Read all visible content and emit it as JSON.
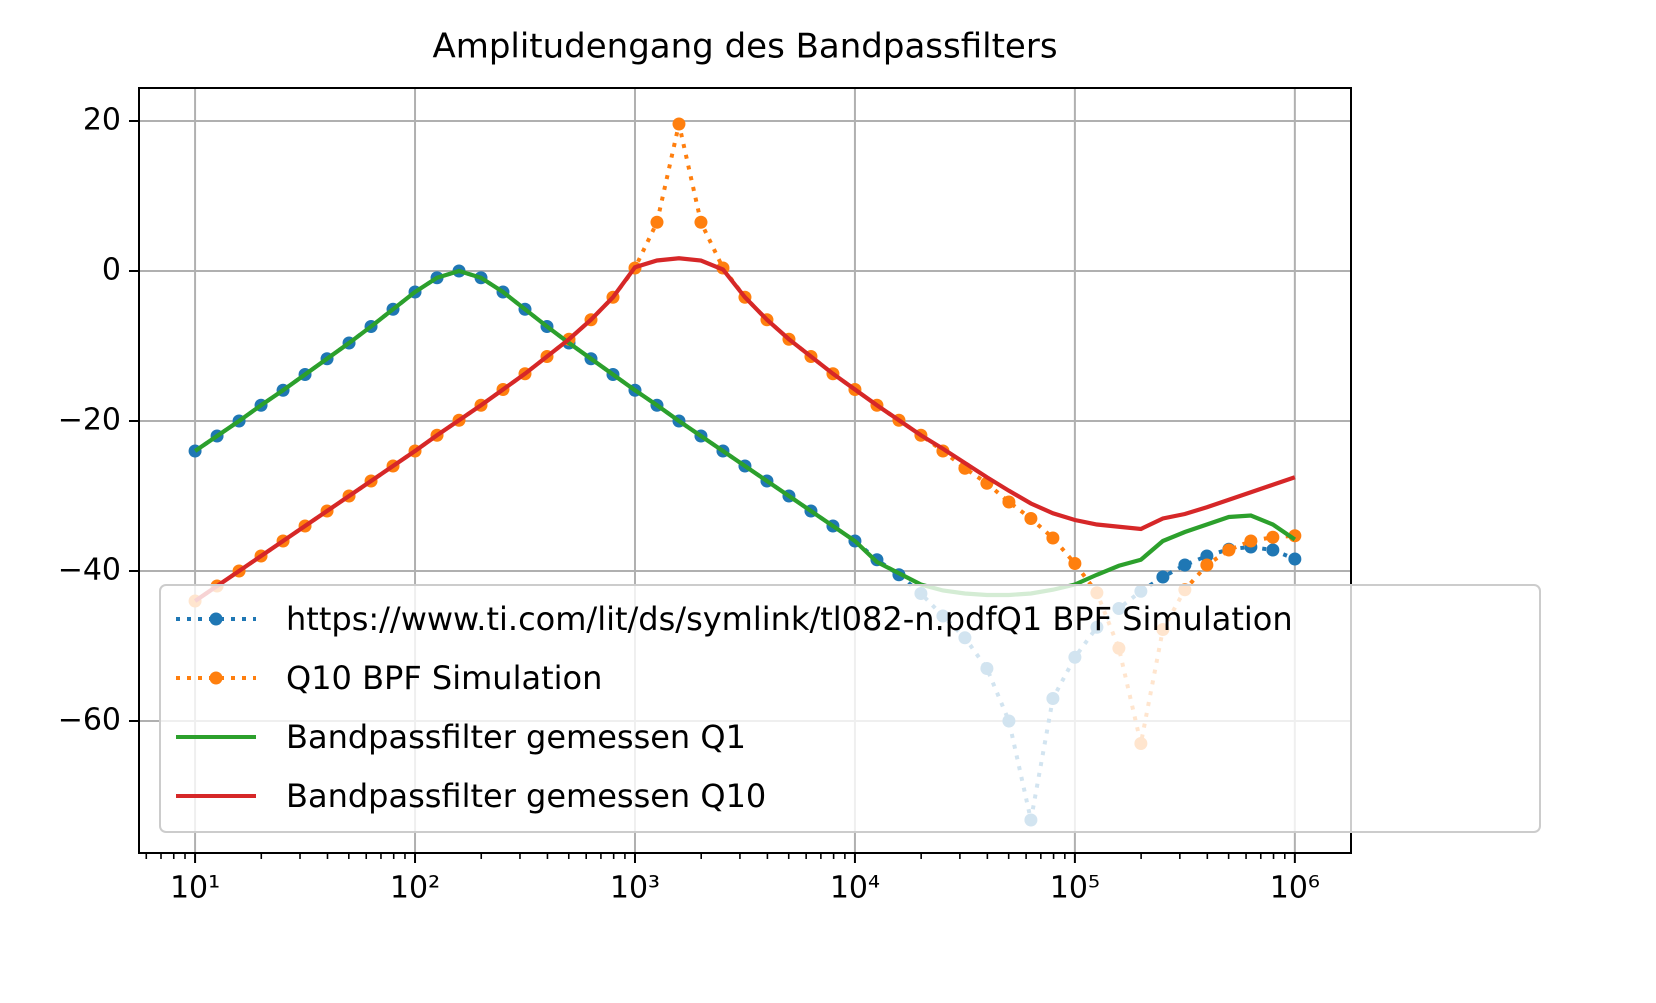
{
  "chart_data": {
    "type": "line",
    "title": "Amplitudengang des Bandpassfilters",
    "xscale": "log",
    "grid": true,
    "legend": "lower right",
    "xlim": [
      5.56,
      1800000
    ],
    "ylim": [
      -77.6,
      24.4
    ],
    "xticks": [
      {
        "value": 10,
        "label": "10¹"
      },
      {
        "value": 100,
        "label": "10²"
      },
      {
        "value": 1000,
        "label": "10³"
      },
      {
        "value": 10000,
        "label": "10⁴"
      },
      {
        "value": 100000,
        "label": "10⁵"
      },
      {
        "value": 1000000,
        "label": "10⁶"
      }
    ],
    "xminorticks": [
      6,
      7,
      8,
      9,
      20,
      30,
      40,
      50,
      60,
      70,
      80,
      90,
      200,
      300,
      400,
      500,
      600,
      700,
      800,
      900,
      2000,
      3000,
      4000,
      5000,
      6000,
      7000,
      8000,
      9000,
      20000,
      30000,
      40000,
      50000,
      60000,
      70000,
      80000,
      90000,
      200000,
      300000,
      400000,
      500000,
      600000,
      700000,
      800000,
      900000
    ],
    "yticks": [
      {
        "value": -60,
        "label": "−60"
      },
      {
        "value": -40,
        "label": "−40"
      },
      {
        "value": -20,
        "label": "−20"
      },
      0,
      20
    ],
    "x": [
      10,
      12.59,
      15.85,
      19.95,
      25.12,
      31.62,
      39.81,
      50.12,
      63.1,
      79.43,
      100,
      125.9,
      158.5,
      199.5,
      251.2,
      316.2,
      398.1,
      501.2,
      631,
      794.3,
      1000,
      1259,
      1585,
      1995,
      2512,
      3162,
      3981,
      5012,
      6310,
      7943,
      10000,
      12590,
      15850,
      19950,
      25120,
      31620,
      39810,
      50120,
      63100,
      79430,
      100000,
      125900,
      158500,
      199500,
      251200,
      316200,
      398100,
      501200,
      631000,
      794300,
      1000000
    ],
    "series": [
      {
        "name": "https://www.ti.com/lit/ds/symlink/tl082-n.pdfQ1 BPF Simulation",
        "color": "#1f77b4",
        "linestyle": "dotted",
        "marker": true,
        "values": [
          -24.0,
          -22.0,
          -20.0,
          -17.9,
          -15.9,
          -13.8,
          -11.7,
          -9.6,
          -7.4,
          -5.1,
          -2.8,
          -0.9,
          0,
          -0.9,
          -2.8,
          -5.1,
          -7.4,
          -9.6,
          -11.7,
          -13.8,
          -15.9,
          -17.9,
          -20.0,
          -22.0,
          -24.0,
          -26.0,
          -28.0,
          -30.0,
          -32.0,
          -34.0,
          -36.0,
          -38.5,
          -40.5,
          -43.0,
          -46.0,
          -48.9,
          -53.0,
          -60.0,
          -73.2,
          -57.0,
          -51.5,
          -47.5,
          -45.0,
          -42.7,
          -40.8,
          -39.2,
          -38.0,
          -37.1,
          -36.8,
          -37.2,
          -38.4
        ]
      },
      {
        "name": "Q10 BPF Simulation",
        "color": "#ff7f0e",
        "linestyle": "dotted",
        "marker": true,
        "values": [
          -44.0,
          -42.0,
          -40.0,
          -38.0,
          -36.0,
          -34.0,
          -32.0,
          -30.0,
          -28.0,
          -26.0,
          -24.0,
          -21.9,
          -19.9,
          -17.9,
          -15.8,
          -13.7,
          -11.4,
          -9.1,
          -6.5,
          -3.5,
          0.4,
          6.5,
          19.6,
          6.5,
          0.4,
          -3.5,
          -6.5,
          -9.1,
          -11.4,
          -13.7,
          -15.8,
          -17.9,
          -19.9,
          -21.9,
          -24.0,
          -26.3,
          -28.3,
          -30.8,
          -33.0,
          -35.6,
          -39.0,
          -42.9,
          -50.3,
          -63.0,
          -47.8,
          -42.5,
          -39.2,
          -37.2,
          -36.0,
          -35.5,
          -35.3
        ]
      },
      {
        "name": "Bandpassfilter gemessen Q1",
        "color": "#2ca02c",
        "linestyle": "solid",
        "marker": false,
        "values": [
          -24.0,
          -22.0,
          -20.0,
          -17.9,
          -15.9,
          -13.8,
          -11.7,
          -9.6,
          -7.4,
          -5.1,
          -2.8,
          -0.9,
          0,
          -0.9,
          -2.8,
          -5.1,
          -7.4,
          -9.6,
          -11.7,
          -13.8,
          -15.9,
          -17.9,
          -20.0,
          -22.0,
          -24.0,
          -26.0,
          -28.0,
          -30.0,
          -32.0,
          -34.0,
          -36.0,
          -38.8,
          -40.3,
          -41.8,
          -42.6,
          -43.0,
          -43.2,
          -43.2,
          -43.0,
          -42.5,
          -41.8,
          -40.5,
          -39.3,
          -38.5,
          -36.0,
          -34.8,
          -33.8,
          -32.8,
          -32.6,
          -33.8,
          -35.8
        ]
      },
      {
        "name": "Bandpassfilter gemessen Q10",
        "color": "#d62728",
        "linestyle": "solid",
        "marker": false,
        "values": [
          -44.0,
          -42.0,
          -40.0,
          -38.0,
          -36.0,
          -34.0,
          -32.0,
          -30.0,
          -28.0,
          -26.0,
          -24.0,
          -21.9,
          -19.9,
          -17.9,
          -15.8,
          -13.7,
          -11.4,
          -9.1,
          -6.5,
          -3.5,
          0.5,
          1.4,
          1.7,
          1.4,
          0.2,
          -3.5,
          -6.5,
          -9.1,
          -11.4,
          -13.7,
          -15.8,
          -17.9,
          -19.9,
          -21.9,
          -23.7,
          -25.6,
          -27.5,
          -29.3,
          -31.0,
          -32.3,
          -33.2,
          -33.8,
          -34.1,
          -34.4,
          -33.0,
          -32.4,
          -31.5,
          -30.5,
          -29.5,
          -28.5,
          -27.5
        ]
      }
    ]
  }
}
